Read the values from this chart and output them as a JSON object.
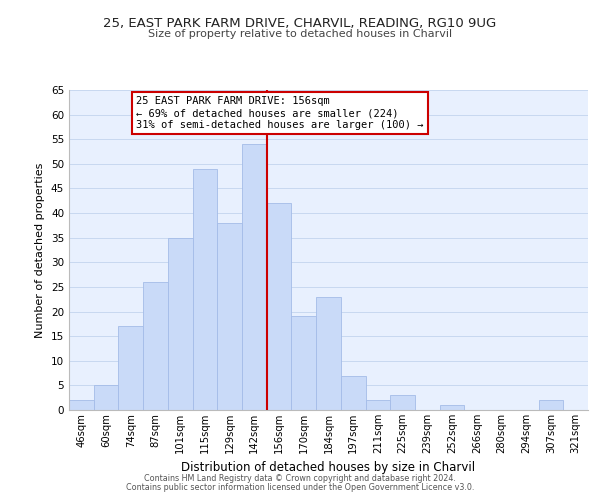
{
  "title": "25, EAST PARK FARM DRIVE, CHARVIL, READING, RG10 9UG",
  "subtitle": "Size of property relative to detached houses in Charvil",
  "xlabel": "Distribution of detached houses by size in Charvil",
  "ylabel": "Number of detached properties",
  "bar_labels": [
    "46sqm",
    "60sqm",
    "74sqm",
    "87sqm",
    "101sqm",
    "115sqm",
    "129sqm",
    "142sqm",
    "156sqm",
    "170sqm",
    "184sqm",
    "197sqm",
    "211sqm",
    "225sqm",
    "239sqm",
    "252sqm",
    "266sqm",
    "280sqm",
    "294sqm",
    "307sqm",
    "321sqm"
  ],
  "bar_values": [
    2,
    5,
    17,
    26,
    35,
    49,
    38,
    54,
    42,
    19,
    23,
    7,
    2,
    3,
    0,
    1,
    0,
    0,
    0,
    2,
    0
  ],
  "bar_color": "#c9daf8",
  "bar_edge_color": "#a4bce8",
  "vline_color": "#cc0000",
  "ylim": [
    0,
    65
  ],
  "yticks": [
    0,
    5,
    10,
    15,
    20,
    25,
    30,
    35,
    40,
    45,
    50,
    55,
    60,
    65
  ],
  "annotation_title": "25 EAST PARK FARM DRIVE: 156sqm",
  "annotation_line1": "← 69% of detached houses are smaller (224)",
  "annotation_line2": "31% of semi-detached houses are larger (100) →",
  "annotation_box_color": "#ffffff",
  "annotation_box_edge": "#cc0000",
  "footer1": "Contains HM Land Registry data © Crown copyright and database right 2024.",
  "footer2": "Contains public sector information licensed under the Open Government Licence v3.0.",
  "bg_color": "#ffffff",
  "plot_bg_color": "#e8f0fe",
  "grid_color": "#c8d8f0"
}
